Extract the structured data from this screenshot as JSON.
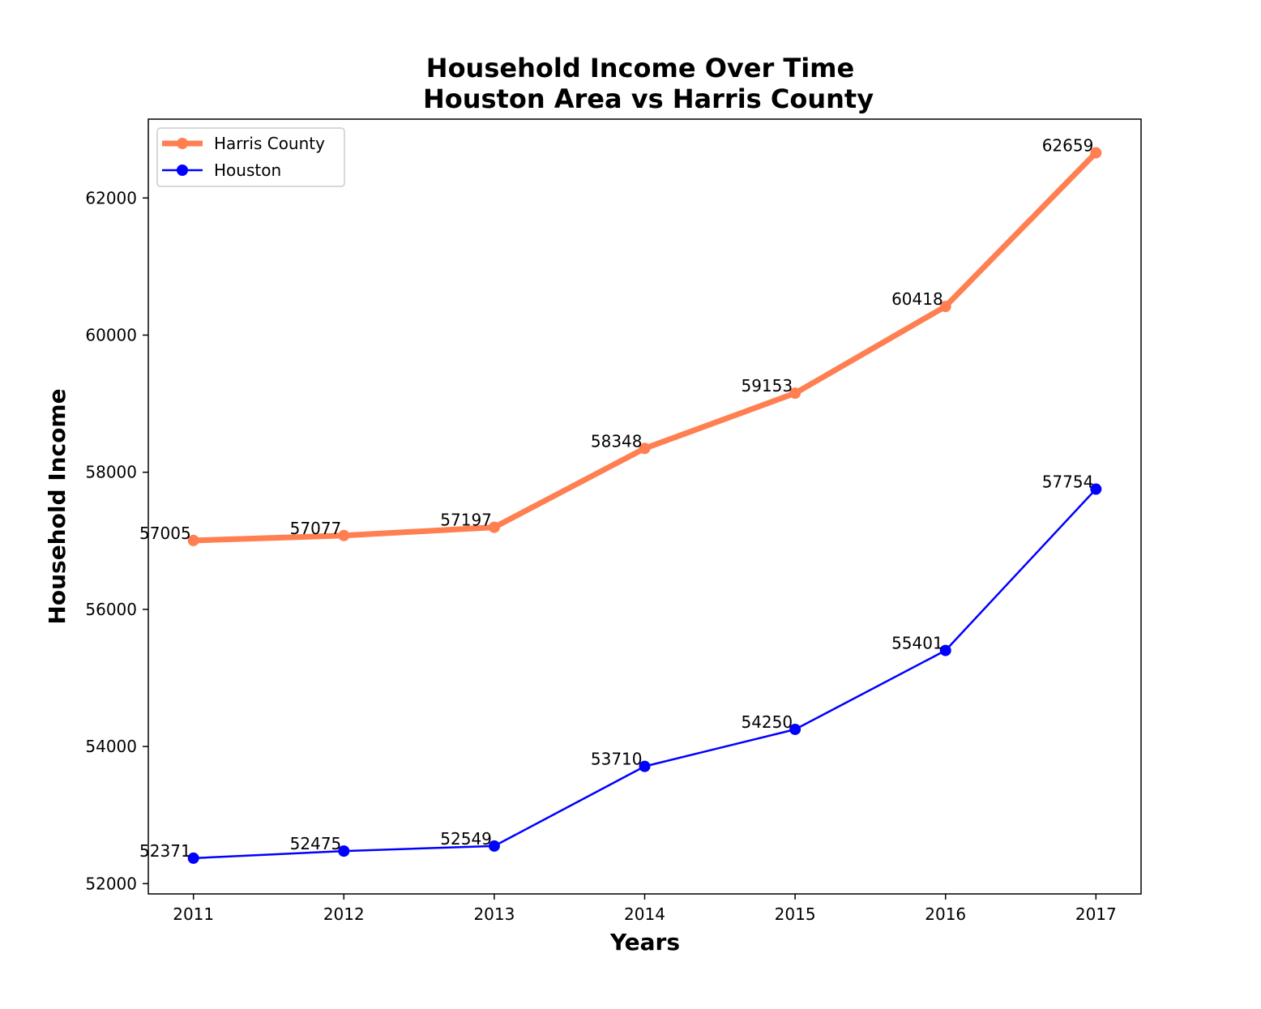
{
  "chart_data": {
    "type": "line",
    "title_line1": "Household Income Over Time",
    "title_line2": "Houston Area vs Harris County",
    "xlabel": "Years",
    "ylabel": "Household Income",
    "x": [
      2011,
      2012,
      2013,
      2014,
      2015,
      2016,
      2017
    ],
    "x_tick_labels": [
      "2011",
      "2012",
      "2013",
      "2014",
      "2015",
      "2016",
      "2017"
    ],
    "y_ticks": [
      52000,
      54000,
      56000,
      58000,
      60000,
      62000
    ],
    "y_tick_labels": [
      "52000",
      "54000",
      "56000",
      "58000",
      "60000",
      "62000"
    ],
    "xlim": [
      2010.7,
      2017.3
    ],
    "ylim": [
      51850,
      63150
    ],
    "grid": false,
    "legend_position": "top-left",
    "series": [
      {
        "name": "Harris County",
        "color": "#ff7f50",
        "values": [
          57005,
          57077,
          57197,
          58348,
          59153,
          60418,
          62659
        ],
        "labels": [
          "57005",
          "57077",
          "57197",
          "58348",
          "59153",
          "60418",
          "62659"
        ]
      },
      {
        "name": "Houston",
        "color": "#0000ff",
        "values": [
          52371,
          52475,
          52549,
          53710,
          54250,
          55401,
          57754
        ],
        "labels": [
          "52371",
          "52475",
          "52549",
          "53710",
          "54250",
          "55401",
          "57754"
        ]
      }
    ]
  }
}
